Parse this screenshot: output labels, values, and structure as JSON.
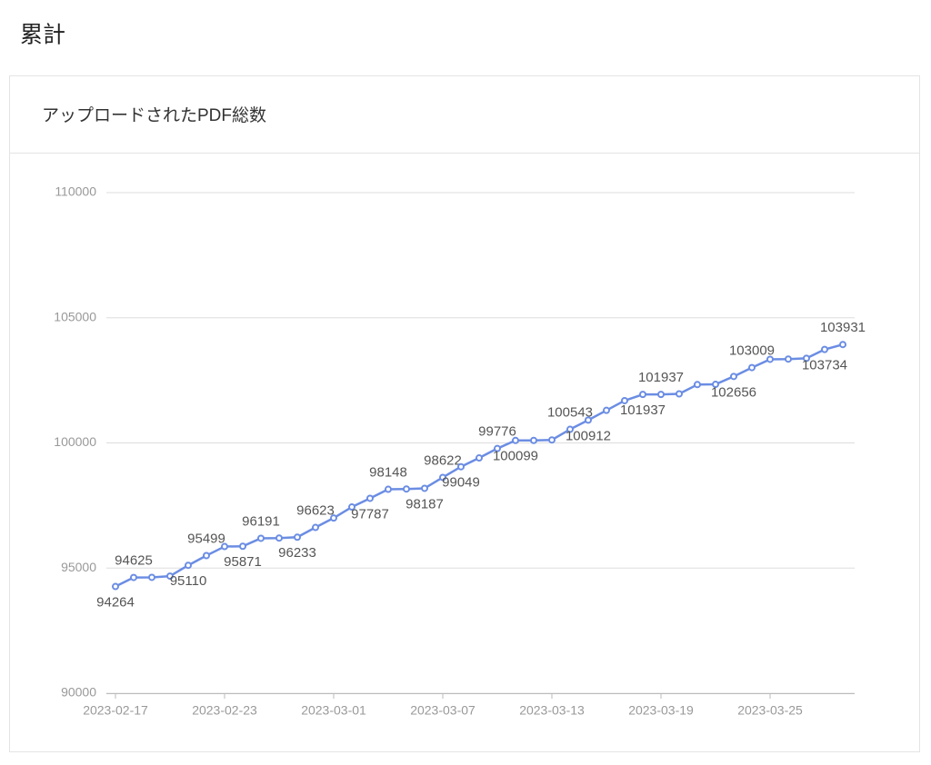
{
  "heading": "累計",
  "chart_data": {
    "type": "line",
    "title": "アップロードされたPDF総数",
    "categories": [
      "2023-02-17",
      null,
      null,
      null,
      null,
      null,
      "2023-02-23",
      null,
      null,
      null,
      null,
      null,
      "2023-03-01",
      null,
      null,
      null,
      null,
      null,
      "2023-03-07",
      null,
      null,
      null,
      null,
      null,
      "2023-03-13",
      null,
      null,
      null,
      null,
      null,
      "2023-03-19",
      null,
      null,
      null,
      null,
      null,
      "2023-03-25",
      null,
      null,
      null,
      null
    ],
    "series": [
      {
        "name": "アップロードされたPDF総数",
        "color": "#6b8de3",
        "values": [
          94264,
          94625,
          94630,
          94680,
          95110,
          95499,
          95860,
          95871,
          96191,
          96200,
          96233,
          96623,
          97000,
          97440,
          97787,
          98148,
          98160,
          98187,
          98622,
          99049,
          99400,
          99776,
          100099,
          100100,
          100120,
          100543,
          100912,
          101300,
          101690,
          101937,
          101937,
          101960,
          102330,
          102340,
          102656,
          103009,
          103340,
          103350,
          103380,
          103734,
          103931
        ],
        "label_positions": [
          "below",
          "above",
          null,
          null,
          "below",
          "above",
          null,
          "below",
          "above",
          null,
          "below",
          "above",
          null,
          null,
          "below",
          "above",
          null,
          "below",
          "above",
          "below",
          null,
          "above",
          "below",
          null,
          null,
          "above",
          "below",
          null,
          null,
          "below",
          "above",
          null,
          null,
          null,
          "below",
          "above",
          null,
          null,
          null,
          "below",
          "above"
        ]
      }
    ],
    "ylim": [
      90000,
      110000
    ],
    "yticks": [
      90000,
      95000,
      100000,
      105000,
      110000
    ],
    "grid": true
  }
}
